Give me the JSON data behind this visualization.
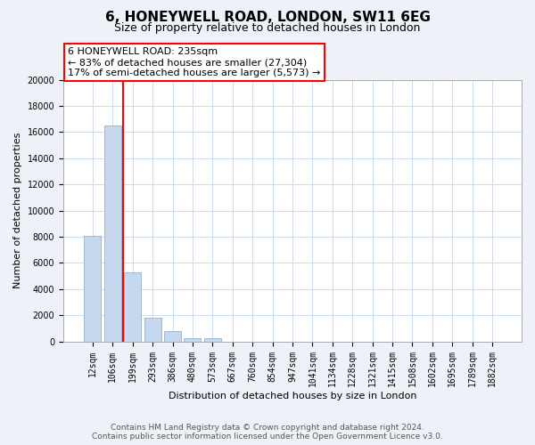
{
  "title": "6, HONEYWELL ROAD, LONDON, SW11 6EG",
  "subtitle": "Size of property relative to detached houses in London",
  "xlabel": "Distribution of detached houses by size in London",
  "ylabel": "Number of detached properties",
  "categories": [
    "12sqm",
    "106sqm",
    "199sqm",
    "293sqm",
    "386sqm",
    "480sqm",
    "573sqm",
    "667sqm",
    "760sqm",
    "854sqm",
    "947sqm",
    "1041sqm",
    "1134sqm",
    "1228sqm",
    "1321sqm",
    "1415sqm",
    "1508sqm",
    "1602sqm",
    "1695sqm",
    "1789sqm",
    "1882sqm"
  ],
  "values": [
    8100,
    16500,
    5300,
    1800,
    780,
    270,
    270,
    0,
    0,
    0,
    0,
    0,
    0,
    0,
    0,
    0,
    0,
    0,
    0,
    0,
    0
  ],
  "bar_color": "#c5d8ed",
  "bar_edge_color": "#a0b8d0",
  "vline_color": "red",
  "annotation_text_line1": "6 HONEYWELL ROAD: 235sqm",
  "annotation_text_line2": "← 83% of detached houses are smaller (27,304)",
  "annotation_text_line3": "17% of semi-detached houses are larger (5,573) →",
  "annotation_box_color": "white",
  "annotation_box_edge_color": "red",
  "ylim": [
    0,
    20000
  ],
  "yticks": [
    0,
    2000,
    4000,
    6000,
    8000,
    10000,
    12000,
    14000,
    16000,
    18000,
    20000
  ],
  "footer_line1": "Contains HM Land Registry data © Crown copyright and database right 2024.",
  "footer_line2": "Contains public sector information licensed under the Open Government Licence v3.0.",
  "background_color": "#eef2f8",
  "plot_background_color": "#ffffff",
  "title_fontsize": 11,
  "subtitle_fontsize": 9,
  "axis_label_fontsize": 8,
  "tick_fontsize": 7,
  "annotation_fontsize": 8,
  "footer_fontsize": 6.5
}
